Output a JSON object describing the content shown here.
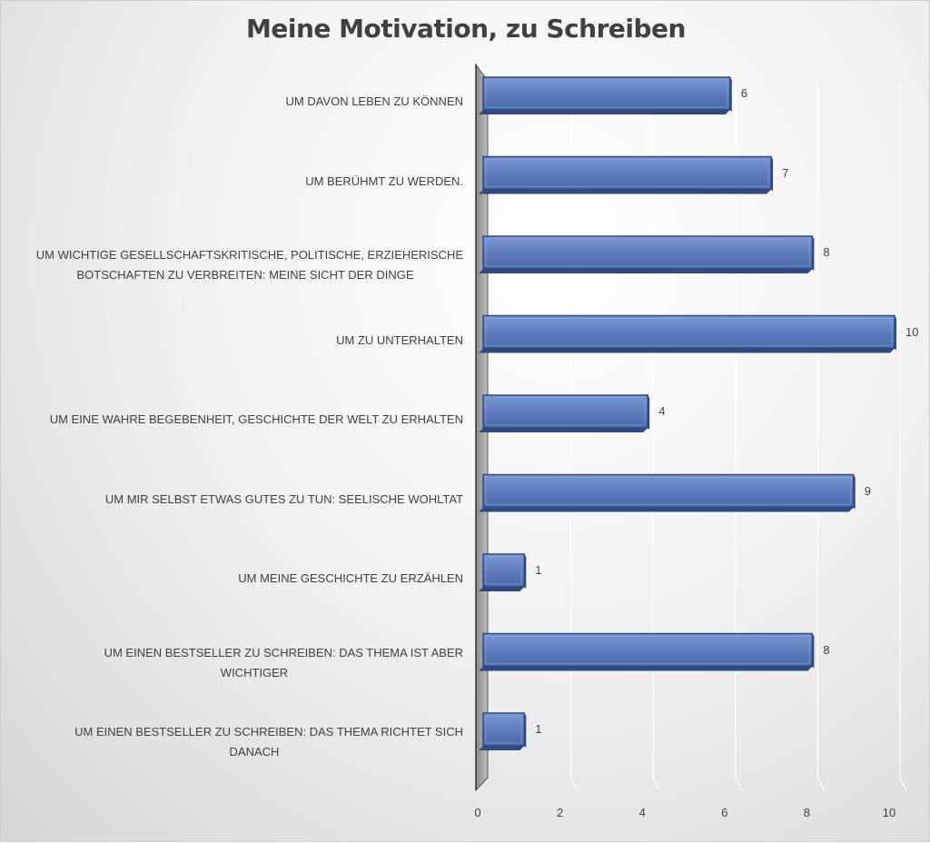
{
  "chart_data": {
    "type": "bar",
    "orientation": "horizontal",
    "title": "Meine Motivation, zu Schreiben",
    "categories": [
      "UM DAVON LEBEN ZU KÖNNEN",
      "UM BERÜHMT ZU WERDEN.",
      "UM WICHTIGE GESELLSCHAFTSKRITISCHE, POLITISCHE, ERZIEHERISCHE BOTSCHAFTEN ZU VERBREITEN: MEINE SICHT DER DINGE",
      "UM ZU UNTERHALTEN",
      "UM EINE WAHRE BEGEBENHEIT, GESCHICHTE DER WELT ZU ERHALTEN",
      "UM MIR SELBST ETWAS GUTES ZU TUN: SEELISCHE WOHLTAT",
      "UM MEINE GESCHICHTE ZU ERZÄHLEN",
      "UM EINEN BESTSELLER ZU SCHREIBEN: DAS THEMA IST ABER WICHTIGER",
      "UM EINEN BESTSELLER ZU SCHREIBEN: DAS THEMA RICHTET SICH DANACH"
    ],
    "category_lines": [
      [
        "UM DAVON LEBEN ZU KÖNNEN"
      ],
      [
        "UM BERÜHMT ZU WERDEN."
      ],
      [
        "UM WICHTIGE GESELLSCHAFTSKRITISCHE, POLITISCHE, ERZIEHERISCHE",
        "BOTSCHAFTEN ZU VERBREITEN: MEINE SICHT DER DINGE"
      ],
      [
        "UM ZU UNTERHALTEN"
      ],
      [
        "UM EINE WAHRE BEGEBENHEIT, GESCHICHTE DER WELT ZU ERHALTEN"
      ],
      [
        "UM MIR SELBST ETWAS GUTES ZU TUN: SEELISCHE WOHLTAT"
      ],
      [
        "UM MEINE GESCHICHTE ZU ERZÄHLEN"
      ],
      [
        "UM EINEN BESTSELLER ZU SCHREIBEN: DAS THEMA IST ABER",
        "WICHTIGER"
      ],
      [
        "UM EINEN BESTSELLER ZU SCHREIBEN: DAS THEMA RICHTET SICH",
        "DANACH"
      ]
    ],
    "values": [
      6,
      7,
      8,
      10,
      4,
      9,
      1,
      8,
      1
    ],
    "xticks": [
      "0",
      "2",
      "4",
      "6",
      "8",
      "10"
    ],
    "xlim": [
      0,
      10
    ],
    "grid": true,
    "legend": "none",
    "style": "3d",
    "colors": {
      "bar": "#4f6fad",
      "bar_light": "#6b8ccc",
      "bar_dark": "#2e4a80",
      "text": "#404040",
      "grid": "#ffffff"
    }
  }
}
